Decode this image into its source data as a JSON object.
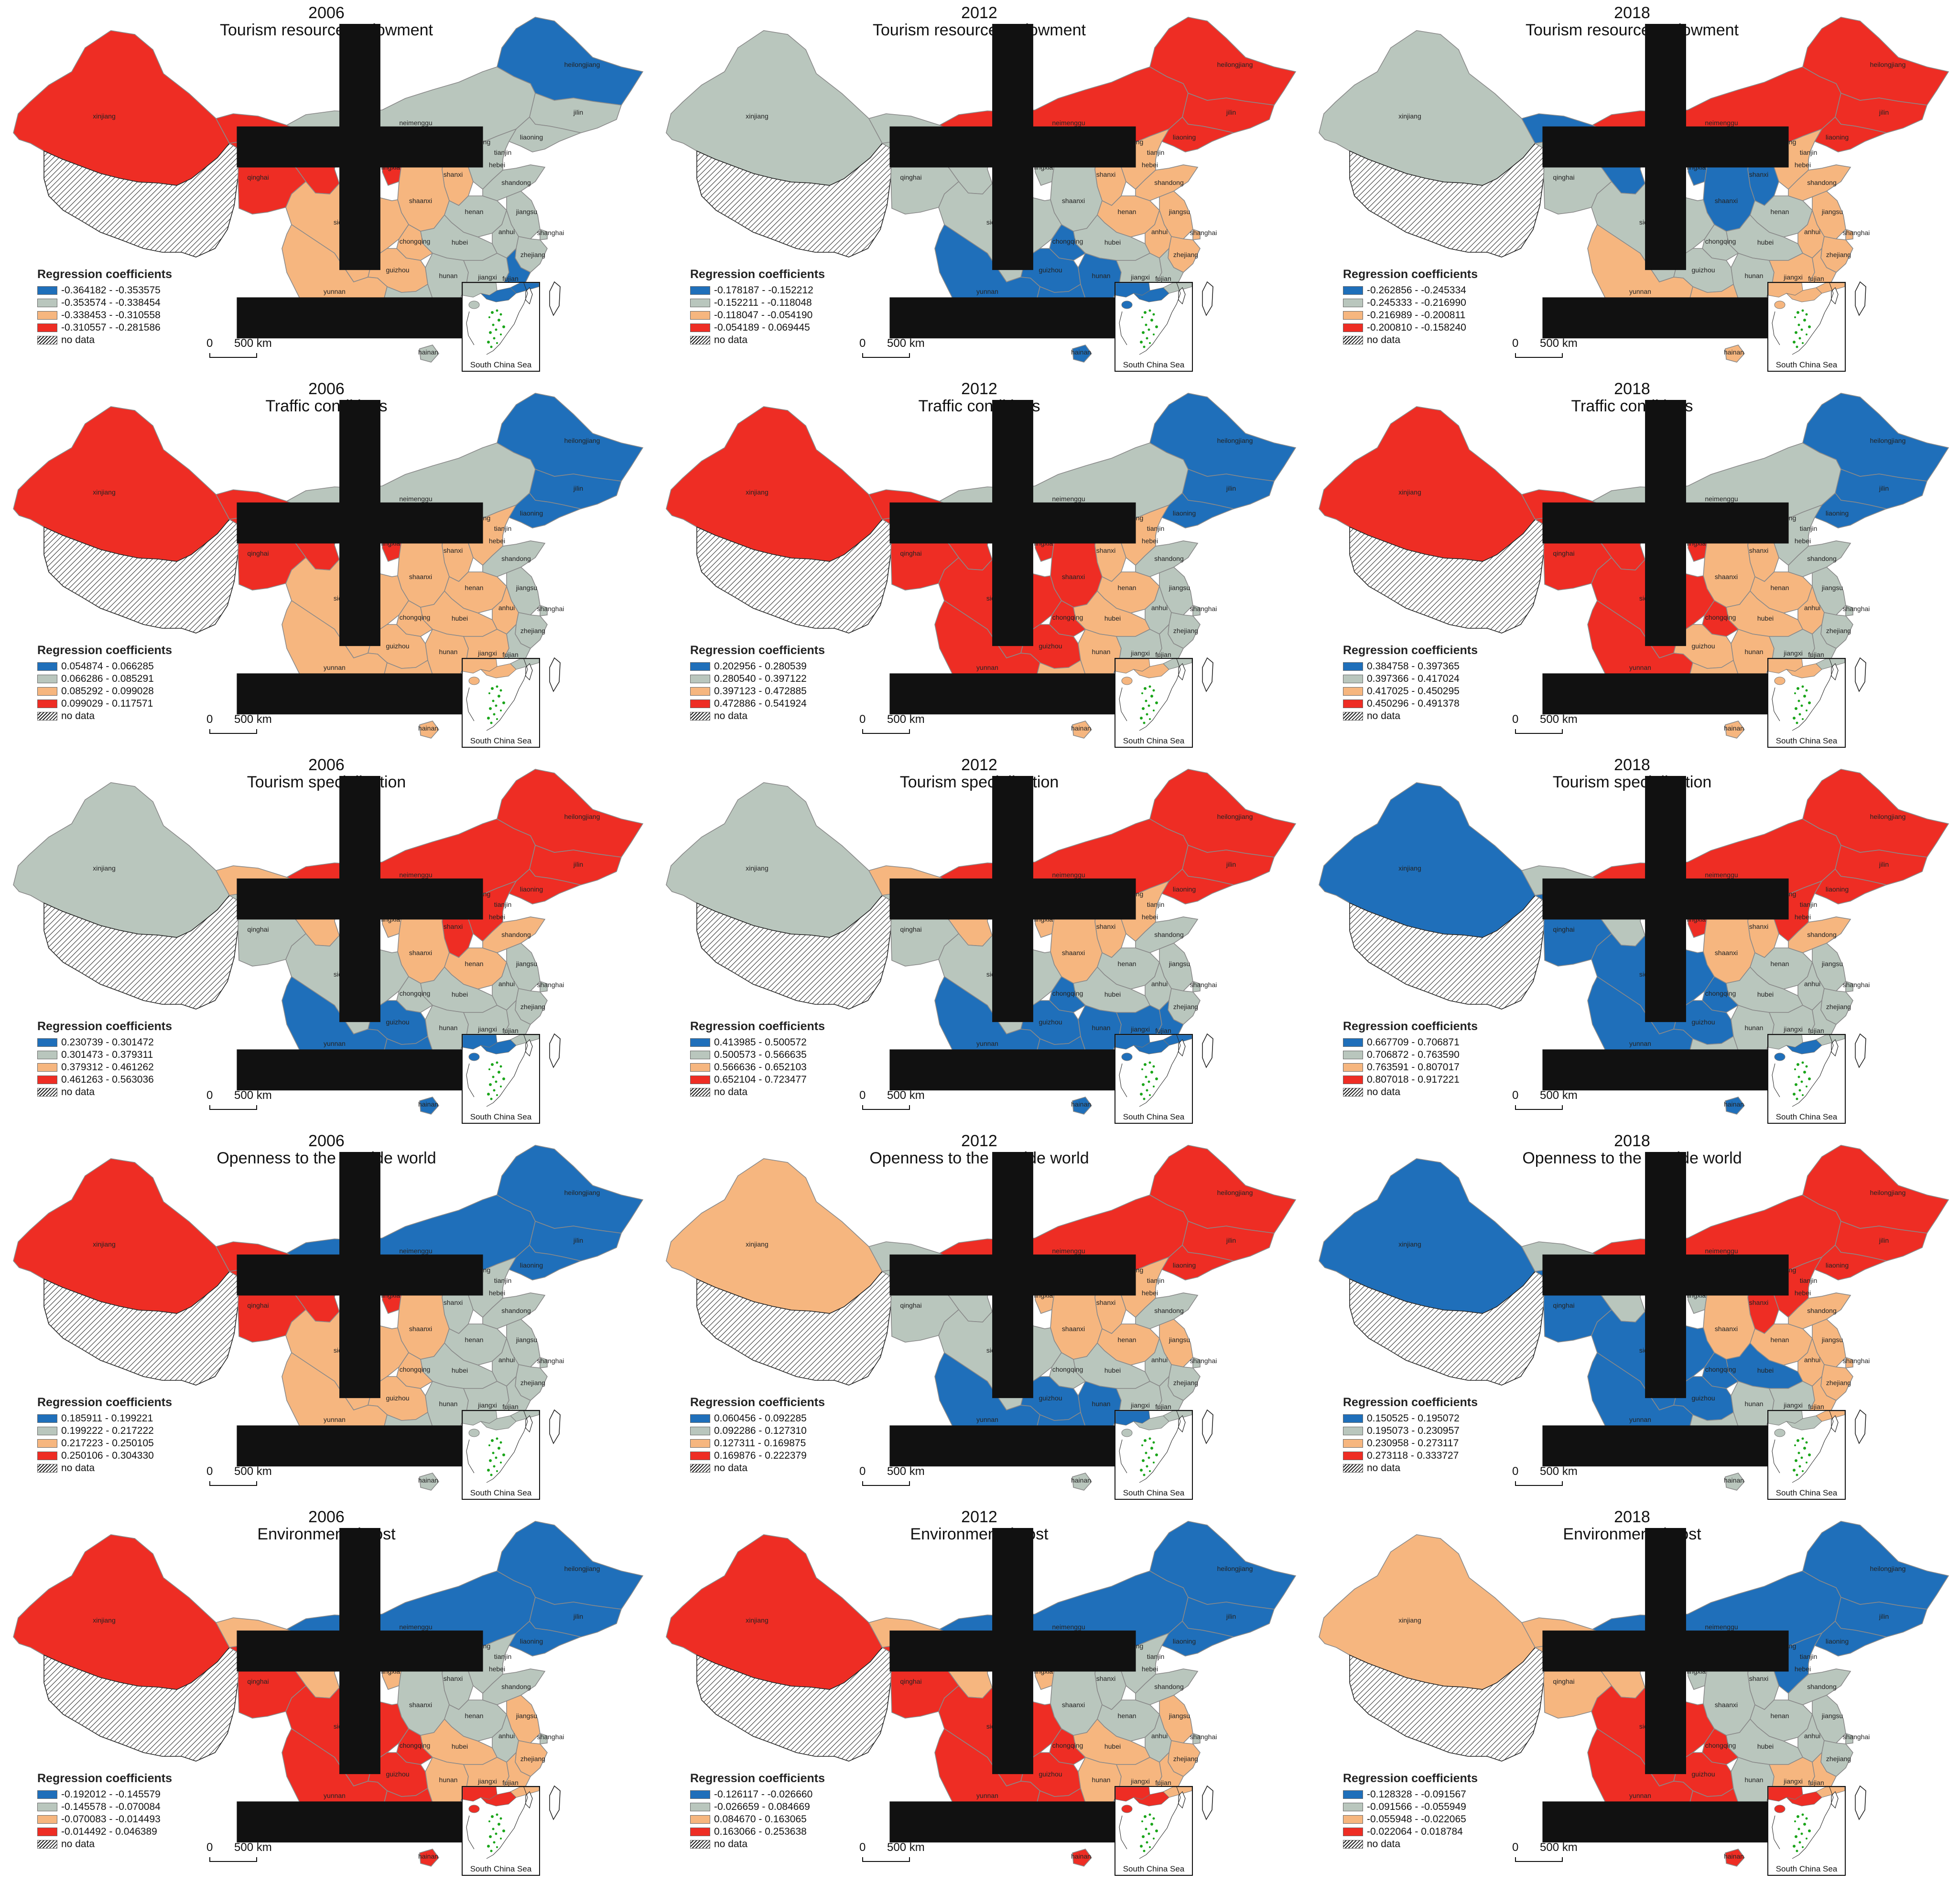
{
  "map_labels": {
    "legend_heading": "Regression coefficients",
    "no_data": "no data",
    "scale_zero": "0",
    "scale_distance": "500 km",
    "inset_label": "South China Sea",
    "north_arrow": "north-arrow"
  },
  "province_labels": [
    "xinjiang",
    "gansu",
    "qinghai",
    "neimenggu",
    "heilongjiang",
    "jilin",
    "liaoning",
    "beijing",
    "tianjin",
    "hebei",
    "shanxi",
    "ningxia",
    "shaanxi",
    "henan",
    "shandong",
    "jiangsu",
    "anhui",
    "shanghai",
    "hubei",
    "zhejiang",
    "sichuan",
    "chongqing",
    "hunan",
    "jiangxi",
    "fujian",
    "guizhou",
    "yunnan",
    "guangxi",
    "guangdong",
    "hainan"
  ],
  "colors": {
    "class1": "#1f6fba",
    "class2": "#b9c6bd",
    "class3": "#f6b67f",
    "class4": "#ee2d24",
    "boundary": "#8a8a8a",
    "inset_islands": "#1aa51a"
  },
  "panels": [
    {
      "year": "2006",
      "title": "Tourism resource endowment",
      "legend": [
        "-0.364182 - -0.353575",
        "-0.353574 - -0.338454",
        "-0.338453 - -0.310558",
        "-0.310557 - -0.281586"
      ],
      "classes": {
        "xinjiang": 4,
        "gansu": 4,
        "qinghai": 4,
        "neimenggu": 2,
        "heilongjiang": 1,
        "jilin": 2,
        "liaoning": 2,
        "beijing": 2,
        "tianjin": 2,
        "hebei": 2,
        "shanxi": 3,
        "ningxia": 4,
        "shaanxi": 3,
        "henan": 2,
        "shandong": 2,
        "jiangsu": 2,
        "anhui": 2,
        "shanghai": 2,
        "hubei": 2,
        "zhejiang": 2,
        "sichuan": 3,
        "chongqing": 3,
        "hunan": 2,
        "jiangxi": 2,
        "fujian": 1,
        "guizhou": 3,
        "yunnan": 3,
        "guangxi": 2,
        "guangdong": 1,
        "hainan": 2
      }
    },
    {
      "year": "2012",
      "title": "Tourism resource endowment",
      "legend": [
        "-0.178187 - -0.152212",
        "-0.152211 - -0.118048",
        "-0.118047 - -0.054190",
        "-0.054189 - 0.069445"
      ],
      "classes": {
        "xinjiang": 2,
        "gansu": 2,
        "qinghai": 2,
        "neimenggu": 4,
        "heilongjiang": 4,
        "jilin": 4,
        "liaoning": 4,
        "beijing": 4,
        "tianjin": 4,
        "hebei": 3,
        "shanxi": 3,
        "ningxia": 2,
        "shaanxi": 2,
        "henan": 3,
        "shandong": 3,
        "jiangsu": 3,
        "anhui": 3,
        "shanghai": 3,
        "hubei": 2,
        "zhejiang": 3,
        "sichuan": 2,
        "chongqing": 1,
        "hunan": 1,
        "jiangxi": 2,
        "fujian": 2,
        "guizhou": 1,
        "yunnan": 1,
        "guangxi": 1,
        "guangdong": 1,
        "hainan": 1
      }
    },
    {
      "year": "2018",
      "title": "Tourism resource endowment",
      "legend": [
        "-0.262856 - -0.245334",
        "-0.245333 - -0.216990",
        "-0.216989 - -0.200811",
        "-0.200810 - -0.158240"
      ],
      "classes": {
        "xinjiang": 2,
        "gansu": 1,
        "qinghai": 2,
        "neimenggu": 4,
        "heilongjiang": 4,
        "jilin": 4,
        "liaoning": 4,
        "beijing": 3,
        "tianjin": 3,
        "hebei": 3,
        "shanxi": 1,
        "ningxia": 1,
        "shaanxi": 1,
        "henan": 2,
        "shandong": 3,
        "jiangsu": 3,
        "anhui": 3,
        "shanghai": 3,
        "hubei": 2,
        "zhejiang": 3,
        "sichuan": 2,
        "chongqing": 2,
        "hunan": 2,
        "jiangxi": 3,
        "fujian": 3,
        "guizhou": 2,
        "yunnan": 3,
        "guangxi": 3,
        "guangdong": 3,
        "hainan": 3
      }
    },
    {
      "year": "2006",
      "title": "Traffic conditions",
      "legend": [
        "0.054874 - 0.066285",
        "0.066286 - 0.085291",
        "0.085292 - 0.099028",
        "0.099029 - 0.117571"
      ],
      "classes": {
        "xinjiang": 4,
        "gansu": 4,
        "qinghai": 4,
        "neimenggu": 2,
        "heilongjiang": 1,
        "jilin": 1,
        "liaoning": 1,
        "beijing": 2,
        "tianjin": 2,
        "hebei": 3,
        "shanxi": 3,
        "ningxia": 4,
        "shaanxi": 3,
        "henan": 3,
        "shandong": 2,
        "jiangsu": 2,
        "anhui": 3,
        "shanghai": 2,
        "hubei": 3,
        "zhejiang": 2,
        "sichuan": 3,
        "chongqing": 3,
        "hunan": 3,
        "jiangxi": 3,
        "fujian": 2,
        "guizhou": 3,
        "yunnan": 3,
        "guangxi": 3,
        "guangdong": 3,
        "hainan": 3
      }
    },
    {
      "year": "2012",
      "title": "Traffic conditions",
      "legend": [
        "0.202956 - 0.280539",
        "0.280540 - 0.397122",
        "0.397123 - 0.472885",
        "0.472886 - 0.541924"
      ],
      "classes": {
        "xinjiang": 4,
        "gansu": 4,
        "qinghai": 4,
        "neimenggu": 2,
        "heilongjiang": 1,
        "jilin": 1,
        "liaoning": 1,
        "beijing": 3,
        "tianjin": 3,
        "hebei": 3,
        "shanxi": 3,
        "ningxia": 4,
        "shaanxi": 4,
        "henan": 3,
        "shandong": 2,
        "jiangsu": 2,
        "anhui": 2,
        "shanghai": 2,
        "hubei": 3,
        "zhejiang": 2,
        "sichuan": 4,
        "chongqing": 4,
        "hunan": 3,
        "jiangxi": 2,
        "fujian": 2,
        "guizhou": 4,
        "yunnan": 4,
        "guangxi": 3,
        "guangdong": 3,
        "hainan": 3
      }
    },
    {
      "year": "2018",
      "title": "Traffic conditions",
      "legend": [
        "0.384758 - 0.397365",
        "0.397366 - 0.417024",
        "0.417025 - 0.450295",
        "0.450296 - 0.491378"
      ],
      "classes": {
        "xinjiang": 4,
        "gansu": 4,
        "qinghai": 4,
        "neimenggu": 2,
        "heilongjiang": 1,
        "jilin": 1,
        "liaoning": 1,
        "beijing": 2,
        "tianjin": 2,
        "hebei": 2,
        "shanxi": 3,
        "ningxia": 4,
        "shaanxi": 3,
        "henan": 3,
        "shandong": 2,
        "jiangsu": 2,
        "anhui": 3,
        "shanghai": 2,
        "hubei": 3,
        "zhejiang": 2,
        "sichuan": 4,
        "chongqing": 4,
        "hunan": 3,
        "jiangxi": 2,
        "fujian": 2,
        "guizhou": 3,
        "yunnan": 4,
        "guangxi": 3,
        "guangdong": 3,
        "hainan": 3
      }
    },
    {
      "year": "2006",
      "title": "Tourism specialization",
      "legend": [
        "0.230739 - 0.301472",
        "0.301473 - 0.379311",
        "0.379312 - 0.461262",
        "0.461263 - 0.563036"
      ],
      "classes": {
        "xinjiang": 2,
        "gansu": 3,
        "qinghai": 2,
        "neimenggu": 4,
        "heilongjiang": 4,
        "jilin": 4,
        "liaoning": 4,
        "beijing": 4,
        "tianjin": 4,
        "hebei": 4,
        "shanxi": 4,
        "ningxia": 3,
        "shaanxi": 3,
        "henan": 3,
        "shandong": 3,
        "jiangsu": 2,
        "anhui": 2,
        "shanghai": 2,
        "hubei": 2,
        "zhejiang": 2,
        "sichuan": 2,
        "chongqing": 2,
        "hunan": 2,
        "jiangxi": 2,
        "fujian": 2,
        "guizhou": 1,
        "yunnan": 1,
        "guangxi": 1,
        "guangdong": 1,
        "hainan": 1
      }
    },
    {
      "year": "2012",
      "title": "Tourism specialization",
      "legend": [
        "0.413985 - 0.500572",
        "0.500573 - 0.566635",
        "0.566636 - 0.652103",
        "0.652104 - 0.723477"
      ],
      "classes": {
        "xinjiang": 2,
        "gansu": 3,
        "qinghai": 2,
        "neimenggu": 4,
        "heilongjiang": 4,
        "jilin": 4,
        "liaoning": 4,
        "beijing": 3,
        "tianjin": 3,
        "hebei": 3,
        "shanxi": 3,
        "ningxia": 3,
        "shaanxi": 3,
        "henan": 2,
        "shandong": 2,
        "jiangsu": 2,
        "anhui": 2,
        "shanghai": 2,
        "hubei": 2,
        "zhejiang": 2,
        "sichuan": 2,
        "chongqing": 1,
        "hunan": 1,
        "jiangxi": 1,
        "fujian": 1,
        "guizhou": 1,
        "yunnan": 1,
        "guangxi": 1,
        "guangdong": 1,
        "hainan": 1
      }
    },
    {
      "year": "2018",
      "title": "Tourism specialization",
      "legend": [
        "0.667709 - 0.706871",
        "0.706872 - 0.763590",
        "0.763591 - 0.807017",
        "0.807018 - 0.917221"
      ],
      "classes": {
        "xinjiang": 1,
        "gansu": 2,
        "qinghai": 1,
        "neimenggu": 4,
        "heilongjiang": 4,
        "jilin": 4,
        "liaoning": 4,
        "beijing": 4,
        "tianjin": 4,
        "hebei": 4,
        "shanxi": 3,
        "ningxia": 4,
        "shaanxi": 3,
        "henan": 2,
        "shandong": 3,
        "jiangsu": 2,
        "anhui": 2,
        "shanghai": 2,
        "hubei": 2,
        "zhejiang": 2,
        "sichuan": 1,
        "chongqing": 1,
        "hunan": 2,
        "jiangxi": 2,
        "fujian": 2,
        "guizhou": 1,
        "yunnan": 1,
        "guangxi": 2,
        "guangdong": 1,
        "hainan": 1
      }
    },
    {
      "year": "2006",
      "title": "Openness to the outside world",
      "legend": [
        "0.185911 - 0.199221",
        "0.199222 - 0.217222",
        "0.217223 - 0.250105",
        "0.250106 - 0.304330"
      ],
      "classes": {
        "xinjiang": 4,
        "gansu": 4,
        "qinghai": 4,
        "neimenggu": 1,
        "heilongjiang": 1,
        "jilin": 1,
        "liaoning": 1,
        "beijing": 2,
        "tianjin": 2,
        "hebei": 2,
        "shanxi": 2,
        "ningxia": 4,
        "shaanxi": 3,
        "henan": 2,
        "shandong": 2,
        "jiangsu": 2,
        "anhui": 2,
        "shanghai": 2,
        "hubei": 2,
        "zhejiang": 2,
        "sichuan": 3,
        "chongqing": 3,
        "hunan": 2,
        "jiangxi": 2,
        "fujian": 2,
        "guizhou": 3,
        "yunnan": 3,
        "guangxi": 2,
        "guangdong": 2,
        "hainan": 2
      }
    },
    {
      "year": "2012",
      "title": "Openness to the outside world",
      "legend": [
        "0.060456 - 0.092285",
        "0.092286 - 0.127310",
        "0.127311 - 0.169875",
        "0.169876 - 0.222379"
      ],
      "classes": {
        "xinjiang": 3,
        "gansu": 2,
        "qinghai": 2,
        "neimenggu": 4,
        "heilongjiang": 4,
        "jilin": 4,
        "liaoning": 4,
        "beijing": 3,
        "tianjin": 3,
        "hebei": 3,
        "shanxi": 3,
        "ningxia": 3,
        "shaanxi": 3,
        "henan": 3,
        "shandong": 2,
        "jiangsu": 3,
        "anhui": 2,
        "shanghai": 2,
        "hubei": 2,
        "zhejiang": 2,
        "sichuan": 2,
        "chongqing": 2,
        "hunan": 1,
        "jiangxi": 2,
        "fujian": 2,
        "guizhou": 1,
        "yunnan": 1,
        "guangxi": 1,
        "guangdong": 2,
        "hainan": 2
      }
    },
    {
      "year": "2018",
      "title": "Openness to the outside world",
      "legend": [
        "0.150525 - 0.195072",
        "0.195073 - 0.230957",
        "0.230958 - 0.273117",
        "0.273118 - 0.333727"
      ],
      "classes": {
        "xinjiang": 1,
        "gansu": 2,
        "qinghai": 1,
        "neimenggu": 4,
        "heilongjiang": 4,
        "jilin": 4,
        "liaoning": 4,
        "beijing": 4,
        "tianjin": 4,
        "hebei": 4,
        "shanxi": 4,
        "ningxia": 2,
        "shaanxi": 3,
        "henan": 3,
        "shandong": 3,
        "jiangsu": 3,
        "anhui": 3,
        "shanghai": 3,
        "hubei": 1,
        "zhejiang": 3,
        "sichuan": 1,
        "chongqing": 1,
        "hunan": 2,
        "jiangxi": 2,
        "fujian": 3,
        "guizhou": 1,
        "yunnan": 1,
        "guangxi": 2,
        "guangdong": 2,
        "hainan": 2
      }
    },
    {
      "year": "2006",
      "title": "Environmental cost",
      "legend": [
        "-0.192012 - -0.145579",
        "-0.145578 - -0.070084",
        "-0.070083 - -0.014493",
        "-0.014492 - 0.046389"
      ],
      "classes": {
        "xinjiang": 4,
        "gansu": 3,
        "qinghai": 4,
        "neimenggu": 1,
        "heilongjiang": 1,
        "jilin": 1,
        "liaoning": 1,
        "beijing": 1,
        "tianjin": 1,
        "hebei": 2,
        "shanxi": 2,
        "ningxia": 3,
        "shaanxi": 2,
        "henan": 2,
        "shandong": 2,
        "jiangsu": 3,
        "anhui": 2,
        "shanghai": 2,
        "hubei": 3,
        "zhejiang": 3,
        "sichuan": 4,
        "chongqing": 4,
        "hunan": 3,
        "jiangxi": 3,
        "fujian": 3,
        "guizhou": 4,
        "yunnan": 4,
        "guangxi": 4,
        "guangdong": 4,
        "hainan": 4
      }
    },
    {
      "year": "2012",
      "title": "Environmental cost",
      "legend": [
        "-0.126117 - -0.026660",
        "-0.026659 - 0.084669",
        "0.084670 - 0.163065",
        "0.163066 - 0.253638"
      ],
      "classes": {
        "xinjiang": 4,
        "gansu": 3,
        "qinghai": 4,
        "neimenggu": 1,
        "heilongjiang": 1,
        "jilin": 1,
        "liaoning": 1,
        "beijing": 1,
        "tianjin": 1,
        "hebei": 2,
        "shanxi": 2,
        "ningxia": 3,
        "shaanxi": 2,
        "henan": 2,
        "shandong": 2,
        "jiangsu": 3,
        "anhui": 2,
        "shanghai": 2,
        "hubei": 3,
        "zhejiang": 3,
        "sichuan": 4,
        "chongqing": 4,
        "hunan": 3,
        "jiangxi": 3,
        "fujian": 3,
        "guizhou": 4,
        "yunnan": 4,
        "guangxi": 4,
        "guangdong": 4,
        "hainan": 4
      }
    },
    {
      "year": "2018",
      "title": "Environmental cost",
      "legend": [
        "-0.128328 - -0.091567",
        "-0.091566 - -0.055949",
        "-0.055948 - -0.022065",
        "-0.022064 - 0.018784"
      ],
      "classes": {
        "xinjiang": 3,
        "gansu": 3,
        "qinghai": 3,
        "neimenggu": 1,
        "heilongjiang": 1,
        "jilin": 1,
        "liaoning": 1,
        "beijing": 1,
        "tianjin": 1,
        "hebei": 1,
        "shanxi": 2,
        "ningxia": 2,
        "shaanxi": 2,
        "henan": 2,
        "shandong": 2,
        "jiangsu": 2,
        "anhui": 2,
        "shanghai": 2,
        "hubei": 2,
        "zhejiang": 2,
        "sichuan": 4,
        "chongqing": 4,
        "hunan": 2,
        "jiangxi": 3,
        "fujian": 3,
        "guizhou": 4,
        "yunnan": 4,
        "guangxi": 4,
        "guangdong": 4,
        "hainan": 4
      }
    }
  ]
}
